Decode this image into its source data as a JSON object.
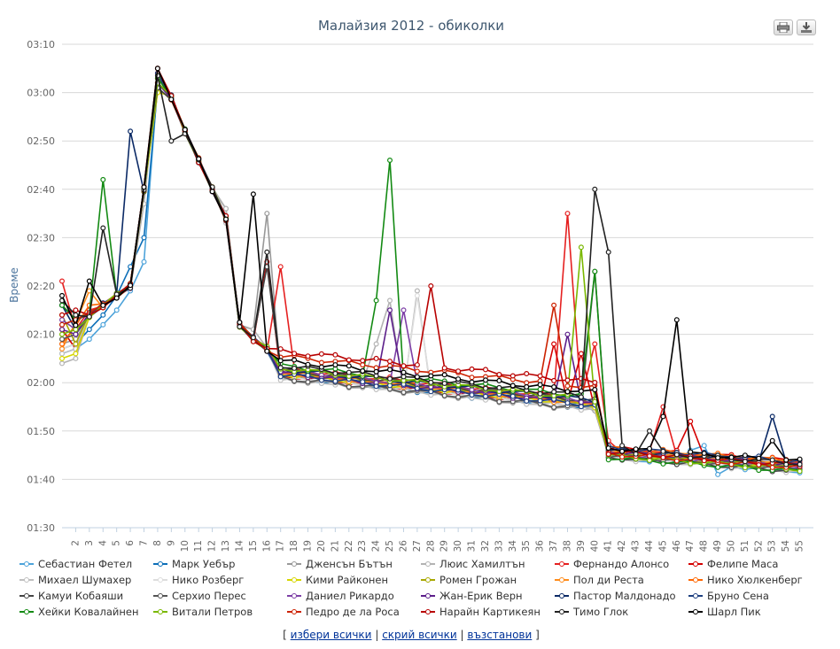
{
  "chart_data": {
    "type": "line",
    "title": "Малайзия 2012 - обиколки",
    "ylabel": "Време",
    "xlabel": "",
    "y_ticks": [
      "01:30",
      "01:40",
      "01:50",
      "02:00",
      "02:10",
      "02:20",
      "02:30",
      "02:40",
      "02:50",
      "03:00",
      "03:10"
    ],
    "y_range_seconds": [
      90,
      190
    ],
    "x_range": [
      1,
      56
    ],
    "x_tick_labels": [
      "2",
      "3",
      "4",
      "5",
      "6",
      "7",
      "8",
      "9",
      "10",
      "11",
      "12",
      "13",
      "14",
      "15",
      "16",
      "17",
      "18",
      "19",
      "20",
      "21",
      "22",
      "23",
      "24",
      "25",
      "26",
      "27",
      "28",
      "29",
      "30",
      "31",
      "32",
      "33",
      "34",
      "35",
      "36",
      "37",
      "38",
      "39",
      "40",
      "41",
      "42",
      "43",
      "44",
      "45",
      "46",
      "47",
      "48",
      "49",
      "50",
      "51",
      "52",
      "53",
      "54",
      "55"
    ],
    "grid": true,
    "legend_position": "bottom",
    "series": [
      {
        "name": "Себастиан Фетел",
        "color": "#4da3da",
        "base_seconds": 121.6,
        "events": {
          "1": 126,
          "2": 127,
          "3": 129,
          "4": 132,
          "5": 135,
          "6": 139,
          "7": 145,
          "8": 182,
          "47": 106,
          "48": 107,
          "49": 101
        }
      },
      {
        "name": "Марк Уебър",
        "color": "#0d6fb8",
        "base_seconds": 121.2,
        "events": {
          "1": 127,
          "2": 128,
          "3": 131,
          "4": 134,
          "5": 138,
          "6": 144,
          "7": 150,
          "8": 181
        }
      },
      {
        "name": "Дженсън Бътън",
        "color": "#999999",
        "base_seconds": 120.8,
        "events": {
          "1": 128,
          "2": 129,
          "8": 184,
          "13": 156,
          "15": 131,
          "16": 155
        }
      },
      {
        "name": "Люис Хамилтън",
        "color": "#b3b3b3",
        "base_seconds": 121.5,
        "events": {
          "1": 124,
          "2": 125,
          "7": 157,
          "8": 184,
          "13": 156,
          "15": 131,
          "24": 128,
          "25": 137,
          "26": 118,
          "27": 139
        }
      },
      {
        "name": "Фернандо Алонсо",
        "color": "#e52020",
        "base_seconds": 122.9,
        "events": {
          "1": 141,
          "2": 131,
          "3": 135,
          "8": 184,
          "17": 144,
          "38": 155,
          "40": 128,
          "41": 108,
          "45": 115
        }
      },
      {
        "name": "Фелипе Маса",
        "color": "#d40000",
        "base_seconds": 121.5,
        "events": {
          "1": 131,
          "2": 127,
          "8": 183,
          "16": 145,
          "37": 128,
          "39": 126,
          "47": 112
        }
      },
      {
        "name": "Михаел Шумахер",
        "color": "#c0c0c0",
        "base_seconds": 121.0,
        "events": {
          "1": 126,
          "2": 127,
          "8": 182,
          "13": 153
        }
      },
      {
        "name": "Нико Розберг",
        "color": "#dddddd",
        "base_seconds": 121.4,
        "events": {
          "1": 127,
          "2": 128,
          "8": 182,
          "27": 138
        }
      },
      {
        "name": "Кими Райконен",
        "color": "#d6d600",
        "base_seconds": 121.8,
        "events": {
          "1": 125,
          "2": 126,
          "8": 180
        }
      },
      {
        "name": "Ромен Грожан",
        "color": "#a8a800",
        "base_seconds": 122.2,
        "events": {
          "1": 134,
          "2": 128,
          "8": 181
        }
      },
      {
        "name": "Пол ди Реста",
        "color": "#ff8c1a",
        "base_seconds": 122.0,
        "events": {
          "1": 127,
          "3": 139,
          "8": 182
        }
      },
      {
        "name": "Нико Хюлкенберг",
        "color": "#ff6600",
        "base_seconds": 122.3,
        "events": {
          "1": 128,
          "3": 136,
          "8": 182
        }
      },
      {
        "name": "Камуи Кобаяши",
        "color": "#444444",
        "base_seconds": 122.6,
        "events": {
          "1": 136,
          "2": 133,
          "8": 181,
          "16": 144,
          "42": 104
        }
      },
      {
        "name": "Серхио Перес",
        "color": "#555555",
        "base_seconds": 121.0,
        "events": {
          "1": 129,
          "2": 130,
          "8": 182,
          "40": 143
        }
      },
      {
        "name": "Даниел Рикардо",
        "color": "#7d3fa6",
        "base_seconds": 122.5,
        "events": {
          "1": 133,
          "2": 131,
          "8": 182,
          "26": 135
        }
      },
      {
        "name": "Жан-Ерик Верн",
        "color": "#5c1f8a",
        "base_seconds": 122.0,
        "events": {
          "1": 131,
          "2": 130,
          "8": 182,
          "25": 135,
          "38": 130
        }
      },
      {
        "name": "Пастор Малдонадо",
        "color": "#0b2a66",
        "base_seconds": 122.8,
        "events": {
          "1": 136,
          "2": 131,
          "6": 172,
          "8": 183,
          "53": 113
        }
      },
      {
        "name": "Бруно Сена",
        "color": "#1e3f80",
        "base_seconds": 121.7,
        "events": {
          "1": 132,
          "2": 133,
          "8": 184
        }
      },
      {
        "name": "Хейки Ковалайнен",
        "color": "#138a13",
        "base_seconds": 123.5,
        "events": {
          "1": 136,
          "2": 133,
          "4": 162,
          "8": 183,
          "24": 137,
          "25": 166,
          "40": 143
        }
      },
      {
        "name": "Витали Петров",
        "color": "#7ab800",
        "base_seconds": 123.0,
        "events": {
          "1": 130,
          "2": 131,
          "8": 182,
          "39": 148
        }
      },
      {
        "name": "Педро де ла Роса",
        "color": "#cc2200",
        "base_seconds": 125.5,
        "events": {
          "1": 132,
          "2": 133,
          "8": 185,
          "37": 136
        }
      },
      {
        "name": "Нарайн Картикеян",
        "color": "#b80000",
        "base_seconds": 126.5,
        "events": {
          "1": 134,
          "2": 135,
          "8": 185,
          "28": 140
        }
      },
      {
        "name": "Тимо Глок",
        "color": "#222222",
        "base_seconds": 123.5,
        "events": {
          "1": 137,
          "2": 134,
          "4": 152,
          "9": 170,
          "16": 147,
          "40": 160,
          "41": 147,
          "42": 107,
          "44": 110
        }
      },
      {
        "name": "Шарл Пик",
        "color": "#000000",
        "base_seconds": 124.5,
        "events": {
          "1": 138,
          "3": 141,
          "8": 185,
          "15": 159,
          "45": 113,
          "46": 133,
          "53": 108
        }
      }
    ]
  },
  "legend": {
    "items": [
      "Себастиан Фетел",
      "Марк Уебър",
      "Дженсън Бътън",
      "Люис Хамилтън",
      "Фернандо Алонсо",
      "Фелипе Маса",
      "Михаел Шумахер",
      "Нико Розберг",
      "Кими Райконен",
      "Ромен Грожан",
      "Пол ди Реста",
      "Нико Хюлкенберг",
      "Камуи Кобаяши",
      "Серхио Перес",
      "Даниел Рикардо",
      "Жан-Ерик Верн",
      "Пастор Малдонадо",
      "Бруно Сена",
      "Хейки Ковалайнен",
      "Витали Петров",
      "Педро де ла Роса",
      "Нарайн Картикеян",
      "Тимо Глок",
      "Шарл Пик"
    ]
  },
  "controls": {
    "print_icon": "print-icon",
    "export_icon": "download-icon",
    "select_all": "избери всички",
    "hide_all": "скрий всички",
    "restore": "възстанови",
    "open_bracket": "[",
    "close_bracket": "]",
    "separator": "|"
  }
}
